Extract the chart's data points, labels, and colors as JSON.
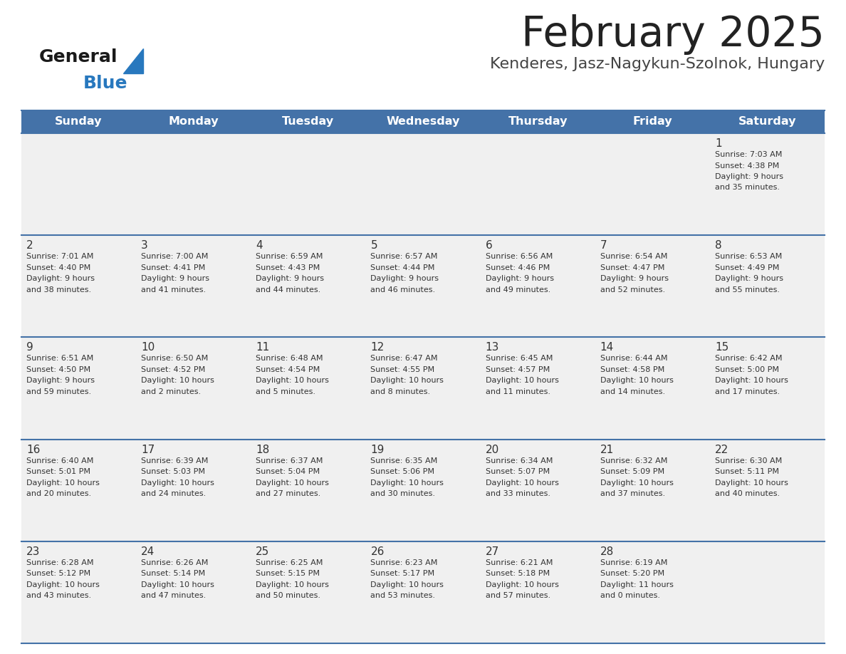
{
  "title": "February 2025",
  "subtitle": "Kenderes, Jasz-Nagykun-Szolnok, Hungary",
  "days_of_week": [
    "Sunday",
    "Monday",
    "Tuesday",
    "Wednesday",
    "Thursday",
    "Friday",
    "Saturday"
  ],
  "header_bg": "#4472A8",
  "header_text": "#FFFFFF",
  "cell_bg": "#F0F0F0",
  "day_number_color": "#333333",
  "info_text_color": "#333333",
  "border_color": "#4472A8",
  "row_separator_color": "#4472A8",
  "title_color": "#222222",
  "subtitle_color": "#444444",
  "logo_general_color": "#1a1a1a",
  "logo_blue_color": "#2878BE",
  "weeks": [
    [
      {
        "day": null,
        "info": null
      },
      {
        "day": null,
        "info": null
      },
      {
        "day": null,
        "info": null
      },
      {
        "day": null,
        "info": null
      },
      {
        "day": null,
        "info": null
      },
      {
        "day": null,
        "info": null
      },
      {
        "day": 1,
        "info": "Sunrise: 7:03 AM\nSunset: 4:38 PM\nDaylight: 9 hours\nand 35 minutes."
      }
    ],
    [
      {
        "day": 2,
        "info": "Sunrise: 7:01 AM\nSunset: 4:40 PM\nDaylight: 9 hours\nand 38 minutes."
      },
      {
        "day": 3,
        "info": "Sunrise: 7:00 AM\nSunset: 4:41 PM\nDaylight: 9 hours\nand 41 minutes."
      },
      {
        "day": 4,
        "info": "Sunrise: 6:59 AM\nSunset: 4:43 PM\nDaylight: 9 hours\nand 44 minutes."
      },
      {
        "day": 5,
        "info": "Sunrise: 6:57 AM\nSunset: 4:44 PM\nDaylight: 9 hours\nand 46 minutes."
      },
      {
        "day": 6,
        "info": "Sunrise: 6:56 AM\nSunset: 4:46 PM\nDaylight: 9 hours\nand 49 minutes."
      },
      {
        "day": 7,
        "info": "Sunrise: 6:54 AM\nSunset: 4:47 PM\nDaylight: 9 hours\nand 52 minutes."
      },
      {
        "day": 8,
        "info": "Sunrise: 6:53 AM\nSunset: 4:49 PM\nDaylight: 9 hours\nand 55 minutes."
      }
    ],
    [
      {
        "day": 9,
        "info": "Sunrise: 6:51 AM\nSunset: 4:50 PM\nDaylight: 9 hours\nand 59 minutes."
      },
      {
        "day": 10,
        "info": "Sunrise: 6:50 AM\nSunset: 4:52 PM\nDaylight: 10 hours\nand 2 minutes."
      },
      {
        "day": 11,
        "info": "Sunrise: 6:48 AM\nSunset: 4:54 PM\nDaylight: 10 hours\nand 5 minutes."
      },
      {
        "day": 12,
        "info": "Sunrise: 6:47 AM\nSunset: 4:55 PM\nDaylight: 10 hours\nand 8 minutes."
      },
      {
        "day": 13,
        "info": "Sunrise: 6:45 AM\nSunset: 4:57 PM\nDaylight: 10 hours\nand 11 minutes."
      },
      {
        "day": 14,
        "info": "Sunrise: 6:44 AM\nSunset: 4:58 PM\nDaylight: 10 hours\nand 14 minutes."
      },
      {
        "day": 15,
        "info": "Sunrise: 6:42 AM\nSunset: 5:00 PM\nDaylight: 10 hours\nand 17 minutes."
      }
    ],
    [
      {
        "day": 16,
        "info": "Sunrise: 6:40 AM\nSunset: 5:01 PM\nDaylight: 10 hours\nand 20 minutes."
      },
      {
        "day": 17,
        "info": "Sunrise: 6:39 AM\nSunset: 5:03 PM\nDaylight: 10 hours\nand 24 minutes."
      },
      {
        "day": 18,
        "info": "Sunrise: 6:37 AM\nSunset: 5:04 PM\nDaylight: 10 hours\nand 27 minutes."
      },
      {
        "day": 19,
        "info": "Sunrise: 6:35 AM\nSunset: 5:06 PM\nDaylight: 10 hours\nand 30 minutes."
      },
      {
        "day": 20,
        "info": "Sunrise: 6:34 AM\nSunset: 5:07 PM\nDaylight: 10 hours\nand 33 minutes."
      },
      {
        "day": 21,
        "info": "Sunrise: 6:32 AM\nSunset: 5:09 PM\nDaylight: 10 hours\nand 37 minutes."
      },
      {
        "day": 22,
        "info": "Sunrise: 6:30 AM\nSunset: 5:11 PM\nDaylight: 10 hours\nand 40 minutes."
      }
    ],
    [
      {
        "day": 23,
        "info": "Sunrise: 6:28 AM\nSunset: 5:12 PM\nDaylight: 10 hours\nand 43 minutes."
      },
      {
        "day": 24,
        "info": "Sunrise: 6:26 AM\nSunset: 5:14 PM\nDaylight: 10 hours\nand 47 minutes."
      },
      {
        "day": 25,
        "info": "Sunrise: 6:25 AM\nSunset: 5:15 PM\nDaylight: 10 hours\nand 50 minutes."
      },
      {
        "day": 26,
        "info": "Sunrise: 6:23 AM\nSunset: 5:17 PM\nDaylight: 10 hours\nand 53 minutes."
      },
      {
        "day": 27,
        "info": "Sunrise: 6:21 AM\nSunset: 5:18 PM\nDaylight: 10 hours\nand 57 minutes."
      },
      {
        "day": 28,
        "info": "Sunrise: 6:19 AM\nSunset: 5:20 PM\nDaylight: 11 hours\nand 0 minutes."
      },
      {
        "day": null,
        "info": null
      }
    ]
  ]
}
